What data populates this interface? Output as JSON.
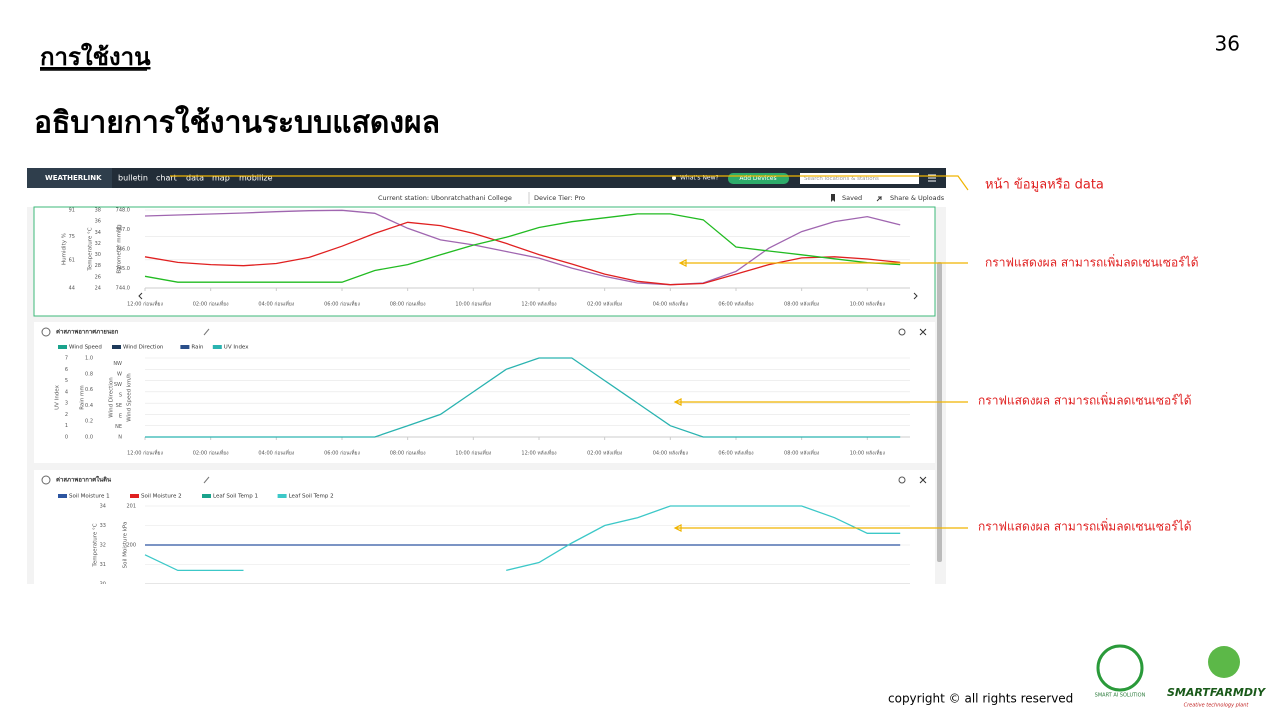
{
  "slide": {
    "section": "การใช้งาน",
    "title": "อธิบายการใช้งานระบบแสดงผล",
    "page_number": "36",
    "copyright": "copyright © all rights reserved",
    "logos": [
      "SMART AI SOLUTION",
      "SMARTFARMDIY",
      "Creative technology plant"
    ]
  },
  "annotations": [
    "หน้า ข้อมูลหรือ data",
    "กราฟแสดงผล สามารถเพิ่มลดเซนเซอร์ได้",
    "กราฟแสดงผล สามารถเพิ่มลดเซนเซอร์ได้",
    "กราฟแสดงผล สามารถเพิ่มลดเซนเซอร์ได้"
  ],
  "app": {
    "brand": "WEATHERLINK",
    "nav": [
      "bulletin",
      "chart",
      "data",
      "map",
      "mobilize"
    ],
    "whats_new": "What's New?",
    "add_button": "Add Devices",
    "search_placeholder": "Search locations & stations",
    "station": "Current station: Ubonratchathani College",
    "tier": "Device Tier: Pro",
    "saved": "Saved",
    "share": "Share & Uploads"
  },
  "charts": [
    {
      "type": "line",
      "x": [
        0,
        1,
        2,
        3,
        4,
        5,
        6,
        7,
        8,
        9,
        10,
        11,
        12,
        13,
        14,
        15,
        16,
        17,
        18,
        19,
        20,
        21,
        22,
        23
      ],
      "xlim": [
        0,
        23.3
      ],
      "xticks": [
        {
          "value": 0,
          "label": "12:00 ก่อนเที่ยง"
        },
        {
          "value": 2,
          "label": "02:00 ก่อนเที่ยง"
        },
        {
          "value": 4,
          "label": "04:00 ก่อนเที่ยง"
        },
        {
          "value": 6,
          "label": "06:00 ก่อนเที่ยง"
        },
        {
          "value": 8,
          "label": "08:00 ก่อนเที่ยง"
        },
        {
          "value": 10,
          "label": "10:00 ก่อนเที่ยง"
        },
        {
          "value": 12,
          "label": "12:00 หลังเที่ยง"
        },
        {
          "value": 14,
          "label": "02:00 หลังเที่ยง"
        },
        {
          "value": 16,
          "label": "04:00 หลังเที่ยง"
        },
        {
          "value": 18,
          "label": "06:00 หลังเที่ยง"
        },
        {
          "value": 20,
          "label": "08:00 หลังเที่ยง"
        },
        {
          "value": 22,
          "label": "10:00 หลังเที่ยง"
        }
      ],
      "axes": [
        {
          "label": "Humidity %",
          "ylim": [
            44,
            91
          ],
          "ticks": [
            44,
            61,
            75,
            91
          ]
        },
        {
          "label": "Temperature °C",
          "ylim": [
            24,
            38
          ],
          "ticks": [
            24,
            26,
            28,
            30,
            32,
            34,
            36,
            38
          ]
        },
        {
          "label": "Barometer mmHg",
          "ylim": [
            744,
            748
          ],
          "ticks": [
            {
              "value": 744,
              "label": "744.0"
            },
            {
              "value": 745,
              "label": "745.0"
            },
            {
              "value": 746,
              "label": "746.0"
            },
            {
              "value": 747,
              "label": "747.0"
            },
            {
              "value": 748,
              "label": "748.0"
            }
          ]
        }
      ],
      "series": [
        {
          "color": "#a066b0",
          "axis": 0,
          "values": [
            87.4,
            88,
            88.6,
            89.2,
            90,
            90.6,
            90.8,
            89,
            80,
            73,
            70,
            66,
            62,
            56,
            51,
            47,
            46,
            47,
            54,
            68,
            78,
            84,
            87,
            82
          ]
        },
        {
          "color": "#e02020",
          "axis": 1,
          "values": [
            29.6,
            28.6,
            28.2,
            28.0,
            28.4,
            29.5,
            31.5,
            33.8,
            35.8,
            35.2,
            33.8,
            32,
            30,
            28.3,
            26.5,
            25.2,
            24.6,
            24.8,
            26.5,
            28.2,
            29.4,
            29.6,
            29.2,
            28.6
          ]
        },
        {
          "color": "#22bb22",
          "axis": 2,
          "values": [
            744.6,
            744.3,
            744.3,
            744.3,
            744.3,
            744.3,
            744.3,
            744.9,
            745.2,
            745.7,
            746.2,
            746.6,
            747.1,
            747.4,
            747.6,
            747.8,
            747.8,
            747.5,
            746.1,
            745.9,
            745.7,
            745.5,
            745.3,
            745.2
          ]
        }
      ]
    },
    {
      "type": "line",
      "title": "ค่าสภาพอากาศภายนอก",
      "x": [
        0,
        1,
        2,
        3,
        4,
        5,
        6,
        7,
        8,
        9,
        10,
        11,
        12,
        13,
        14,
        15,
        16,
        17,
        18,
        19,
        20,
        21,
        22,
        23
      ],
      "xlim": [
        0,
        23.3
      ],
      "xticks": [
        {
          "value": 0,
          "label": "12:00 ก่อนเที่ยง"
        },
        {
          "value": 2,
          "label": "02:00 ก่อนเที่ยง"
        },
        {
          "value": 4,
          "label": "04:00 ก่อนเที่ยง"
        },
        {
          "value": 6,
          "label": "06:00 ก่อนเที่ยง"
        },
        {
          "value": 8,
          "label": "08:00 ก่อนเที่ยง"
        },
        {
          "value": 10,
          "label": "10:00 ก่อนเที่ยง"
        },
        {
          "value": 12,
          "label": "12:00 หลังเที่ยง"
        },
        {
          "value": 14,
          "label": "02:00 หลังเที่ยง"
        },
        {
          "value": 16,
          "label": "04:00 หลังเที่ยง"
        },
        {
          "value": 18,
          "label": "06:00 หลังเที่ยง"
        },
        {
          "value": 20,
          "label": "08:00 หลังเที่ยง"
        },
        {
          "value": 22,
          "label": "10:00 หลังเที่ยง"
        }
      ],
      "axes": [
        {
          "label": "UV Index",
          "ylim": [
            0,
            7
          ],
          "ticks": [
            0,
            1,
            2,
            3,
            4,
            5,
            6,
            7
          ]
        },
        {
          "label": "Rain mm",
          "ylim": [
            0,
            1
          ],
          "ticks": [
            {
              "value": 0,
              "label": "0.0"
            },
            0.2,
            0.4,
            0.6,
            0.8,
            {
              "value": 1,
              "label": "1.0"
            }
          ]
        },
        {
          "label": "Wind Direction",
          "ylim": [
            0,
            7.5
          ],
          "ticks": [
            {
              "value": 0,
              "label": "N"
            },
            {
              "value": 1,
              "label": "NE"
            },
            {
              "value": 2,
              "label": "E"
            },
            {
              "value": 3,
              "label": "SE"
            },
            {
              "value": 4,
              "label": "S"
            },
            {
              "value": 5,
              "label": "SW"
            },
            {
              "value": 6,
              "label": "W"
            },
            {
              "value": 7,
              "label": "NW"
            }
          ]
        },
        {
          "label": "Wind Speed km/h"
        }
      ],
      "series": [
        {
          "name": "Wind Speed",
          "color": "#1aa38c"
        },
        {
          "name": "Wind Direction",
          "color": "#1e3a5a"
        },
        {
          "name": "Rain",
          "color": "#2a4f8a"
        },
        {
          "name": "UV Index",
          "color": "#2ab3b0",
          "axis": 0,
          "values": [
            0,
            0,
            0,
            0,
            0,
            0,
            0,
            0,
            1,
            2,
            4,
            6,
            7,
            7,
            5,
            3,
            1,
            0,
            0,
            0,
            0,
            0,
            0,
            0
          ]
        }
      ]
    },
    {
      "type": "line",
      "title": "ค่าสภาพอากาศในดิน",
      "x": [
        0,
        1,
        2,
        3,
        4,
        5,
        6,
        7,
        8,
        9,
        10,
        11,
        12,
        13,
        14,
        15,
        16,
        17,
        18,
        19,
        20,
        21,
        22,
        23
      ],
      "xlim": [
        0,
        23.3
      ],
      "axes": [
        {
          "label": "Temperature °C",
          "ylim": [
            30,
            34
          ],
          "ticks": [
            30,
            31,
            32,
            33,
            34
          ]
        },
        {
          "label": "Soil Moisture kPa",
          "ylim": [
            199,
            201
          ],
          "ticks": [
            200,
            201
          ]
        }
      ],
      "series": [
        {
          "name": "Soil Moisture 1",
          "color": "#2c55a0",
          "axis": 1,
          "values": [
            200,
            200,
            200,
            200,
            200,
            200,
            200,
            200,
            200,
            200,
            200,
            200,
            200,
            200,
            200,
            200,
            200,
            200,
            200,
            200,
            200,
            200,
            200,
            200
          ]
        },
        {
          "name": "Soil Moisture 2",
          "color": "#e02020"
        },
        {
          "name": "Leaf Soil Temp 1",
          "color": "#1aa38c"
        },
        {
          "name": "Leaf Soil Temp 2",
          "color": "#3cc8c8",
          "axis": 0,
          "values": [
            31.5,
            30.7,
            30.7,
            30.7,
            null,
            null,
            null,
            null,
            null,
            null,
            null,
            30.7,
            31.1,
            32.1,
            33.0,
            33.4,
            34,
            34,
            34,
            34,
            34,
            33.4,
            32.6,
            32.6
          ]
        }
      ]
    }
  ]
}
